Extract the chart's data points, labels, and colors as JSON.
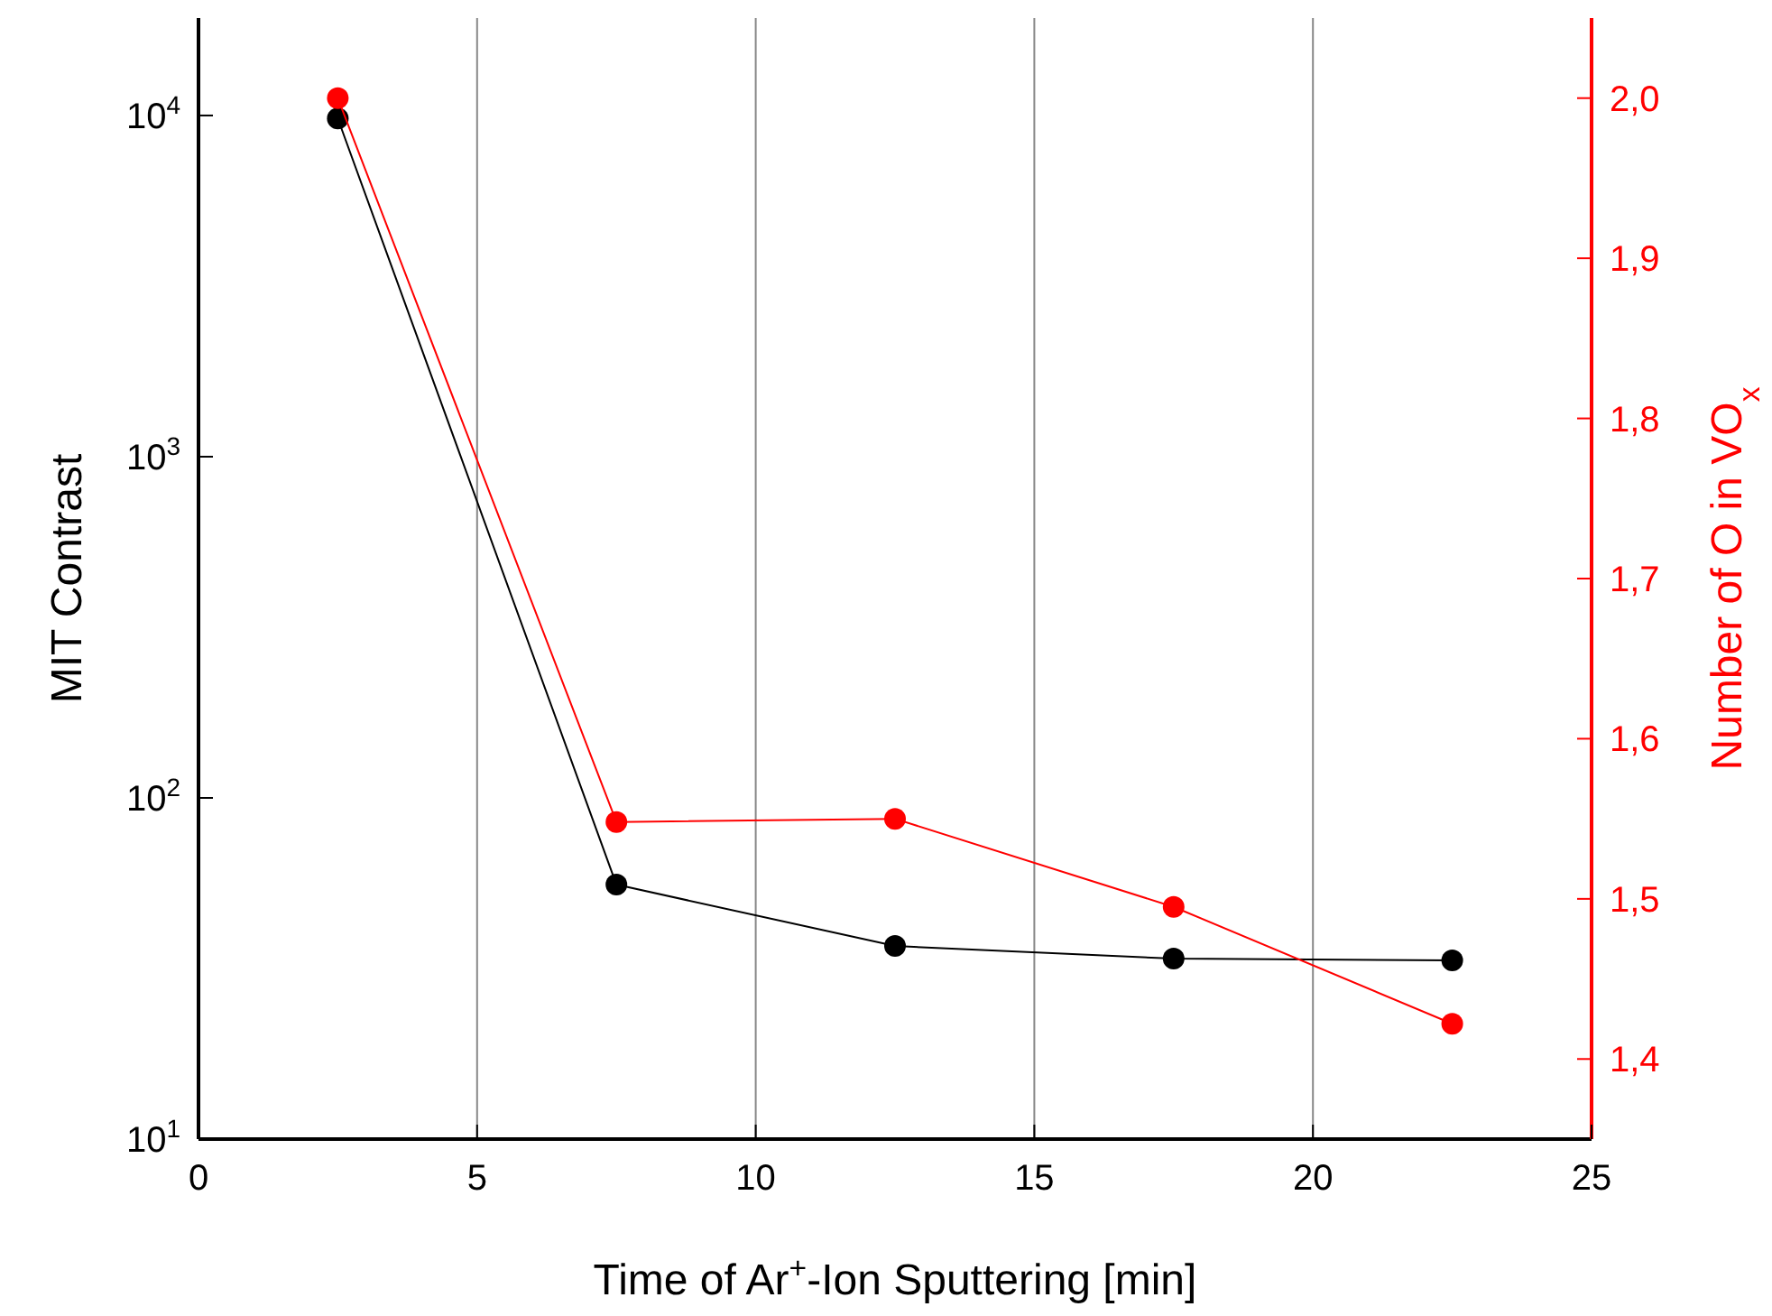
{
  "chart_data": {
    "type": "line",
    "xlabel": "Time of Ar$^{+}$-Ion Sputtering [min]",
    "ylabel": "MIT Contrast",
    "y2label": "Number of O in VO$_{x}$",
    "x": [
      2.5,
      7.5,
      12.5,
      17.5,
      22.5
    ],
    "series": [
      {
        "color": "#000000",
        "values": [
          9800,
          55.7,
          36.8,
          33.8,
          33.4
        ]
      },
      {
        "color": "#ff0000",
        "values": [
          2.0,
          1.548,
          1.55,
          1.495,
          1.422
        ],
        "axis": "y2"
      }
    ],
    "xlim": [
      0,
      25
    ],
    "xticks": [
      0,
      5,
      10,
      15,
      20,
      25
    ],
    "ylim": [
      10,
      19300
    ],
    "yticks": [
      {
        "value": 10,
        "label": "10$^{1}$"
      },
      {
        "value": 100,
        "label": "10$^{2}$"
      },
      {
        "value": 1000,
        "label": "10$^{3}$"
      },
      {
        "value": 10000,
        "label": "10$^{4}$"
      }
    ],
    "y2lim": [
      1.35,
      2.05
    ],
    "y2ticks": [
      {
        "value": 1.4,
        "label": "1,4"
      },
      {
        "value": 1.5,
        "label": "1,5"
      },
      {
        "value": 1.6,
        "label": "1,6"
      },
      {
        "value": 1.7,
        "label": "1,7"
      },
      {
        "value": 1.8,
        "label": "1,8"
      },
      {
        "value": 1.9,
        "label": "1,9"
      },
      {
        "value": 2.0,
        "label": "2,0"
      }
    ],
    "log": "y",
    "grid": "x",
    "marker": "circle",
    "line_style": "solid"
  }
}
